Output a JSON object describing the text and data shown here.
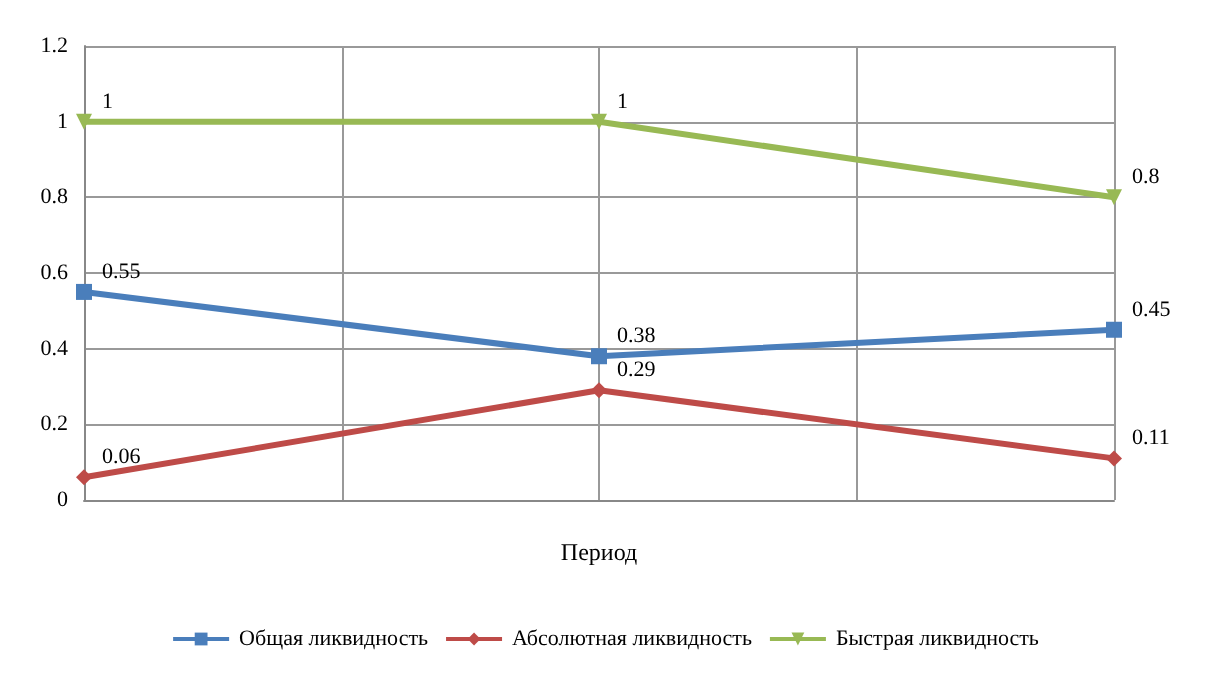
{
  "chart_data": {
    "type": "line",
    "xlabel": "Период",
    "categories": [
      null,
      null,
      null
    ],
    "series": [
      {
        "name": "Общая ликвидность",
        "color": "#4a7ebb",
        "marker": "square",
        "values": [
          0.55,
          0.38,
          0.45
        ]
      },
      {
        "name": "Абсолютная ликвидность",
        "color": "#be4b48",
        "marker": "diamond",
        "values": [
          0.06,
          0.29,
          0.11
        ]
      },
      {
        "name": "Быстрая ликвидность",
        "color": "#98b954",
        "marker": "triangle",
        "values": [
          1,
          1,
          0.8
        ]
      }
    ],
    "ylim": [
      0,
      1.2
    ],
    "yticks": [
      0,
      0.2,
      0.4,
      0.6,
      0.8,
      1,
      1.2
    ],
    "grid": true,
    "legend": "bottom",
    "data_labels": true
  }
}
